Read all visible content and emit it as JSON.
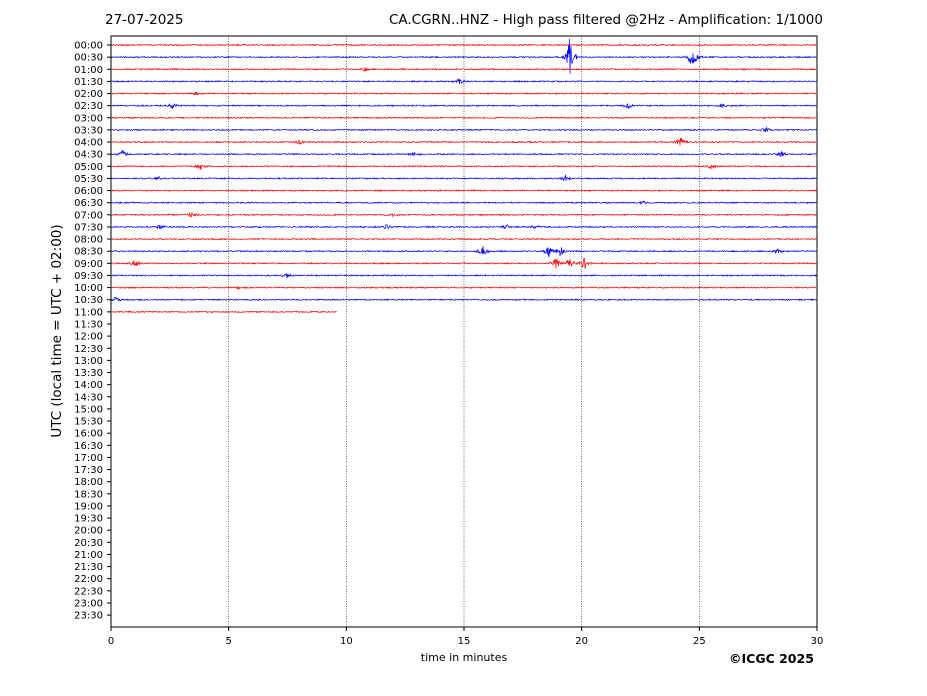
{
  "header": {
    "date": "27-07-2025",
    "title": "CA.CGRN..HNZ - High pass filtered @2Hz - Amplification: 1/1000"
  },
  "footer": {
    "copyright": "©ICGC 2025"
  },
  "colors": {
    "trace_a": "#ff0000",
    "trace_b": "#0000ff",
    "grid": "#000000"
  },
  "chart_data": {
    "type": "line",
    "subtype": "helicorder",
    "xlabel": "time in minutes",
    "ylabel": "UTC (local time = UTC + 02:00)",
    "xlim": [
      0,
      30
    ],
    "x_ticks": [
      0,
      5,
      10,
      15,
      20,
      25,
      30
    ],
    "vertical_gridlines_at": [
      5,
      10,
      15,
      20,
      25
    ],
    "grid": "vertical dotted",
    "y_ticks": [
      "00:00",
      "00:30",
      "01:00",
      "01:30",
      "02:00",
      "02:30",
      "03:00",
      "03:30",
      "04:00",
      "04:30",
      "05:00",
      "05:30",
      "06:00",
      "06:30",
      "07:00",
      "07:30",
      "08:00",
      "08:30",
      "09:00",
      "09:30",
      "10:00",
      "10:30",
      "11:00",
      "11:30",
      "12:00",
      "12:30",
      "13:00",
      "13:30",
      "14:00",
      "14:30",
      "15:00",
      "15:30",
      "16:00",
      "16:30",
      "17:00",
      "17:30",
      "18:00",
      "18:30",
      "19:00",
      "19:30",
      "20:00",
      "20:30",
      "21:00",
      "21:30",
      "22:00",
      "22:30",
      "23:00",
      "23:30"
    ],
    "traces": [
      {
        "row": "00:00",
        "color": "red",
        "end_min": 30,
        "events": []
      },
      {
        "row": "00:30",
        "color": "blue",
        "end_min": 30,
        "events": [
          {
            "t": 19.5,
            "amp": 1.8
          },
          {
            "t": 24.6,
            "amp": 0.6
          },
          {
            "t": 24.8,
            "amp": 0.6
          }
        ]
      },
      {
        "row": "01:00",
        "color": "red",
        "end_min": 30,
        "events": [
          {
            "t": 10.8,
            "amp": 0.15
          }
        ]
      },
      {
        "row": "01:30",
        "color": "blue",
        "end_min": 30,
        "events": [
          {
            "t": 14.8,
            "amp": 0.25
          }
        ]
      },
      {
        "row": "02:00",
        "color": "red",
        "end_min": 30,
        "events": [
          {
            "t": 3.6,
            "amp": 0.12
          }
        ]
      },
      {
        "row": "02:30",
        "color": "blue",
        "end_min": 30,
        "events": [
          {
            "t": 2.6,
            "amp": 0.25
          },
          {
            "t": 22.0,
            "amp": 0.25
          },
          {
            "t": 26.0,
            "amp": 0.15
          }
        ]
      },
      {
        "row": "03:00",
        "color": "red",
        "end_min": 30,
        "events": []
      },
      {
        "row": "03:30",
        "color": "blue",
        "end_min": 30,
        "events": [
          {
            "t": 27.8,
            "amp": 0.25
          }
        ]
      },
      {
        "row": "04:00",
        "color": "red",
        "end_min": 30,
        "events": [
          {
            "t": 8.0,
            "amp": 0.2
          },
          {
            "t": 24.2,
            "amp": 0.45
          }
        ]
      },
      {
        "row": "04:30",
        "color": "blue",
        "end_min": 30,
        "events": [
          {
            "t": 0.5,
            "amp": 0.3
          },
          {
            "t": 12.9,
            "amp": 0.25
          },
          {
            "t": 28.5,
            "amp": 0.2
          }
        ]
      },
      {
        "row": "05:00",
        "color": "red",
        "end_min": 30,
        "events": [
          {
            "t": 3.8,
            "amp": 0.3
          },
          {
            "t": 25.5,
            "amp": 0.2
          }
        ]
      },
      {
        "row": "05:30",
        "color": "blue",
        "end_min": 30,
        "events": [
          {
            "t": 2.0,
            "amp": 0.2
          },
          {
            "t": 19.3,
            "amp": 0.3
          }
        ]
      },
      {
        "row": "06:00",
        "color": "red",
        "end_min": 30,
        "events": []
      },
      {
        "row": "06:30",
        "color": "blue",
        "end_min": 30,
        "events": [
          {
            "t": 22.6,
            "amp": 0.15
          }
        ]
      },
      {
        "row": "07:00",
        "color": "red",
        "end_min": 30,
        "events": [
          {
            "t": 3.4,
            "amp": 0.2
          },
          {
            "t": 12.0,
            "amp": 0.15
          }
        ]
      },
      {
        "row": "07:30",
        "color": "blue",
        "end_min": 30,
        "events": [
          {
            "t": 2.1,
            "amp": 0.2
          },
          {
            "t": 11.7,
            "amp": 0.2
          },
          {
            "t": 16.8,
            "amp": 0.2
          },
          {
            "t": 18.0,
            "amp": 0.2
          }
        ]
      },
      {
        "row": "08:00",
        "color": "red",
        "end_min": 30,
        "events": []
      },
      {
        "row": "08:30",
        "color": "blue",
        "end_min": 30,
        "events": [
          {
            "t": 15.8,
            "amp": 0.6
          },
          {
            "t": 18.6,
            "amp": 0.45
          },
          {
            "t": 19.1,
            "amp": 0.45
          },
          {
            "t": 28.3,
            "amp": 0.2
          }
        ]
      },
      {
        "row": "09:00",
        "color": "red",
        "end_min": 30,
        "events": [
          {
            "t": 1.0,
            "amp": 0.35
          },
          {
            "t": 18.9,
            "amp": 0.5
          },
          {
            "t": 19.5,
            "amp": 0.5
          },
          {
            "t": 20.1,
            "amp": 0.5
          }
        ]
      },
      {
        "row": "09:30",
        "color": "blue",
        "end_min": 30,
        "events": [
          {
            "t": 7.5,
            "amp": 0.2
          }
        ]
      },
      {
        "row": "10:00",
        "color": "red",
        "end_min": 30,
        "events": [
          {
            "t": 5.5,
            "amp": 0.12
          }
        ]
      },
      {
        "row": "10:30",
        "color": "blue",
        "end_min": 30,
        "events": [
          {
            "t": 0.2,
            "amp": 0.2
          }
        ]
      },
      {
        "row": "11:00",
        "color": "red",
        "end_min": 9.6,
        "events": []
      }
    ]
  }
}
